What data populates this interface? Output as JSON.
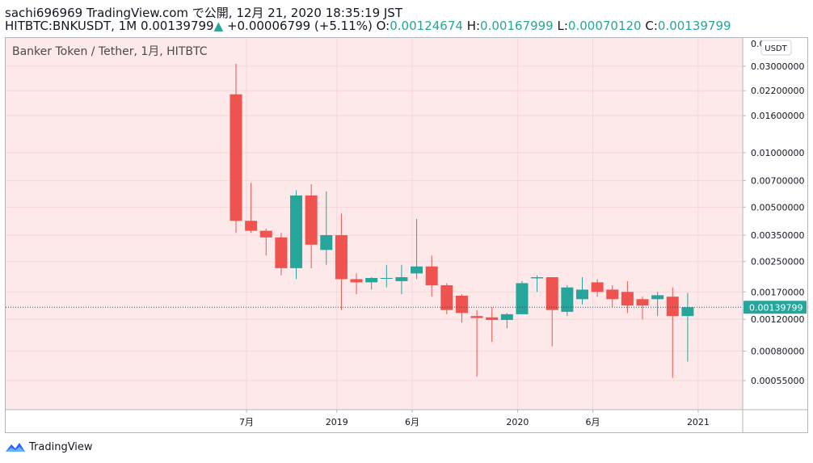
{
  "header": {
    "line1": "sachi696969 TradingView.com で公開, 12月 21, 2020 18:35:19 JST",
    "symbol": "HITBTC:BNKUSDT, 1M",
    "price": "0.00139799",
    "up_arrow": "▲",
    "change": "+0.00006799 (+5.11%)",
    "o_label": "O:",
    "o_val": "0.00124674",
    "h_label": "H:",
    "h_val": "0.00167999",
    "l_label": "L:",
    "l_val": "0.00070120",
    "c_label": "C:",
    "c_val": "0.00139799"
  },
  "legend": {
    "title": "Banker Token / Tether, 1月, HITBTC"
  },
  "axis": {
    "currency": "USDT"
  },
  "footer": {
    "brand": "TradingView"
  },
  "colors": {
    "up": "#26a69a",
    "down": "#ef5350",
    "background": "#fde8ea",
    "grid": "#f6d6da"
  },
  "chart_data": {
    "type": "candlestick",
    "title": "Banker Token / Tether, 1月, HITBTC",
    "y_scale": "log",
    "ylim": [
      0.00038,
      0.043
    ],
    "y_ticks": [
      0.03,
      0.022,
      0.016,
      0.01,
      0.007,
      0.005,
      0.0035,
      0.0025,
      0.0017,
      0.0012,
      0.0008,
      0.00055
    ],
    "y_tick_labels": [
      "0.03000000",
      "0.02200000",
      "0.01600000",
      "0.01000000",
      "0.00700000",
      "0.00500000",
      "0.00350000",
      "0.00250000",
      "0.00170000",
      "0.00120000",
      "0.00080000",
      "0.00055000"
    ],
    "top_partial_label": "0.04",
    "last_price": 0.00139799,
    "last_price_label": "0.00139799",
    "x_labels": [
      {
        "label": "7月",
        "index": 0.7
      },
      {
        "label": "2019",
        "index": 6.7
      },
      {
        "label": "6月",
        "index": 11.7
      },
      {
        "label": "2020",
        "index": 18.7
      },
      {
        "label": "6月",
        "index": 23.7
      },
      {
        "label": "2021",
        "index": 30.7
      }
    ],
    "candles": [
      {
        "o": 0.021,
        "h": 0.031,
        "l": 0.0036,
        "c": 0.0042
      },
      {
        "o": 0.0042,
        "h": 0.0068,
        "l": 0.0036,
        "c": 0.0037
      },
      {
        "o": 0.0037,
        "h": 0.0038,
        "l": 0.0027,
        "c": 0.0034
      },
      {
        "o": 0.0034,
        "h": 0.0036,
        "l": 0.0021,
        "c": 0.0023
      },
      {
        "o": 0.0023,
        "h": 0.0062,
        "l": 0.002,
        "c": 0.0058
      },
      {
        "o": 0.0058,
        "h": 0.0067,
        "l": 0.0023,
        "c": 0.0031
      },
      {
        "o": 0.0029,
        "h": 0.0061,
        "l": 0.0024,
        "c": 0.0035
      },
      {
        "o": 0.0035,
        "h": 0.0046,
        "l": 0.00135,
        "c": 0.002
      },
      {
        "o": 0.002,
        "h": 0.00215,
        "l": 0.00165,
        "c": 0.00192
      },
      {
        "o": 0.00192,
        "h": 0.00205,
        "l": 0.00175,
        "c": 0.00203
      },
      {
        "o": 0.00203,
        "h": 0.0024,
        "l": 0.0018,
        "c": 0.00203
      },
      {
        "o": 0.00195,
        "h": 0.0024,
        "l": 0.00165,
        "c": 0.00205
      },
      {
        "o": 0.00215,
        "h": 0.0043,
        "l": 0.002,
        "c": 0.00235
      },
      {
        "o": 0.00235,
        "h": 0.0027,
        "l": 0.0016,
        "c": 0.00185
      },
      {
        "o": 0.00185,
        "h": 0.0019,
        "l": 0.00128,
        "c": 0.00135
      },
      {
        "o": 0.00162,
        "h": 0.00165,
        "l": 0.00115,
        "c": 0.0013
      },
      {
        "o": 0.00125,
        "h": 0.00135,
        "l": 0.00058,
        "c": 0.00122
      },
      {
        "o": 0.00123,
        "h": 0.0014,
        "l": 0.0009,
        "c": 0.00119
      },
      {
        "o": 0.00119,
        "h": 0.0013,
        "l": 0.00107,
        "c": 0.00128
      },
      {
        "o": 0.00128,
        "h": 0.00195,
        "l": 0.00128,
        "c": 0.0019
      },
      {
        "o": 0.00202,
        "h": 0.0021,
        "l": 0.0017,
        "c": 0.00205
      },
      {
        "o": 0.00205,
        "h": 0.00205,
        "l": 0.00085,
        "c": 0.00135
      },
      {
        "o": 0.00132,
        "h": 0.00185,
        "l": 0.00125,
        "c": 0.0018
      },
      {
        "o": 0.00155,
        "h": 0.00205,
        "l": 0.00145,
        "c": 0.00175
      },
      {
        "o": 0.00192,
        "h": 0.002,
        "l": 0.0016,
        "c": 0.0017
      },
      {
        "o": 0.00175,
        "h": 0.00185,
        "l": 0.0014,
        "c": 0.00155
      },
      {
        "o": 0.0017,
        "h": 0.00195,
        "l": 0.0013,
        "c": 0.00143
      },
      {
        "o": 0.00155,
        "h": 0.0016,
        "l": 0.0012,
        "c": 0.00143
      },
      {
        "o": 0.00155,
        "h": 0.0017,
        "l": 0.00125,
        "c": 0.00163
      },
      {
        "o": 0.0016,
        "h": 0.0018,
        "l": 0.00057,
        "c": 0.00125
      },
      {
        "o": 0.00125,
        "h": 0.00168,
        "l": 0.0007,
        "c": 0.0014
      }
    ]
  }
}
